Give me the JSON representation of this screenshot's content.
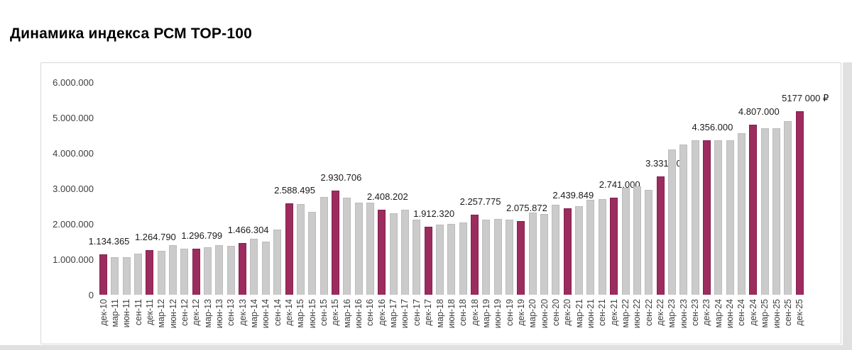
{
  "chart_data": {
    "type": "bar",
    "title": "Динамика индекса РСМ ТОР-100",
    "currency_unit": "₽",
    "ylim": [
      0,
      6000000
    ],
    "grid": false,
    "legend": false,
    "x_label_rotation": "vertical-bottom-to-top",
    "highlight_rule": "december-bars-highlighted-with-value-labels",
    "colors": {
      "bar": "#cbcbcb",
      "highlight": "#9c2c5e"
    },
    "y_ticks": [
      {
        "label": "6.000.000",
        "value": 6000000
      },
      {
        "label": "5.000.000",
        "value": 5000000
      },
      {
        "label": "4.000.000",
        "value": 4000000
      },
      {
        "label": "3.000.000",
        "value": 3000000
      },
      {
        "label": "2.000.000",
        "value": 2000000
      },
      {
        "label": "1.000.000",
        "value": 1000000
      },
      {
        "label": "0",
        "value": 0
      }
    ],
    "bars": [
      {
        "label": "дек-10",
        "value": 1134365,
        "highlight": true,
        "annotation": "1.134.365"
      },
      {
        "label": "мар-11",
        "value": 1060000
      },
      {
        "label": "июн-11",
        "value": 1060000
      },
      {
        "label": "сен-11",
        "value": 1160000
      },
      {
        "label": "дек-11",
        "value": 1264790,
        "highlight": true,
        "annotation": "1.264.790"
      },
      {
        "label": "мар-12",
        "value": 1250000
      },
      {
        "label": "июн-12",
        "value": 1400000
      },
      {
        "label": "сен-12",
        "value": 1310000
      },
      {
        "label": "дек-12",
        "value": 1296799,
        "highlight": true,
        "annotation": "1.296.799"
      },
      {
        "label": "мар-13",
        "value": 1340000
      },
      {
        "label": "июн-13",
        "value": 1410000
      },
      {
        "label": "сен-13",
        "value": 1380000
      },
      {
        "label": "дек-13",
        "value": 1466304,
        "highlight": true,
        "annotation": "1.466.304"
      },
      {
        "label": "мар-14",
        "value": 1590000
      },
      {
        "label": "июн-14",
        "value": 1510000
      },
      {
        "label": "сен-14",
        "value": 1840000
      },
      {
        "label": "дек-14",
        "value": 2588495,
        "highlight": true,
        "annotation": "2.588.495"
      },
      {
        "label": "мар-15",
        "value": 2570000
      },
      {
        "label": "июн-15",
        "value": 2350000
      },
      {
        "label": "сен-15",
        "value": 2770000
      },
      {
        "label": "дек-15",
        "value": 2930706,
        "highlight": true,
        "annotation": "2.930.706"
      },
      {
        "label": "мар-16",
        "value": 2750000
      },
      {
        "label": "июн-16",
        "value": 2610000
      },
      {
        "label": "сен-16",
        "value": 2610000
      },
      {
        "label": "дек-16",
        "value": 2408202,
        "highlight": true,
        "annotation": "2.408.202"
      },
      {
        "label": "мар-17",
        "value": 2300000
      },
      {
        "label": "июн-17",
        "value": 2400000
      },
      {
        "label": "сен-17",
        "value": 2130000
      },
      {
        "label": "дек-17",
        "value": 1912320,
        "highlight": true,
        "annotation": "1.912.320"
      },
      {
        "label": "мар-18",
        "value": 1980000
      },
      {
        "label": "июн-18",
        "value": 2010000
      },
      {
        "label": "сен-18",
        "value": 2040000
      },
      {
        "label": "дек-18",
        "value": 2257775,
        "highlight": true,
        "annotation": "2.257.775"
      },
      {
        "label": "мар-19",
        "value": 2130000
      },
      {
        "label": "июн-19",
        "value": 2140000
      },
      {
        "label": "сен-19",
        "value": 2120000
      },
      {
        "label": "дек-19",
        "value": 2075872,
        "highlight": true,
        "annotation": "2.075.872"
      },
      {
        "label": "мар-20",
        "value": 2330000
      },
      {
        "label": "июн-20",
        "value": 2290000
      },
      {
        "label": "сен-20",
        "value": 2550000
      },
      {
        "label": "дек-20",
        "value": 2439849,
        "highlight": true,
        "annotation": "2.439.849"
      },
      {
        "label": "мар-21",
        "value": 2510000
      },
      {
        "label": "июн-21",
        "value": 2690000
      },
      {
        "label": "сен-21",
        "value": 2700000
      },
      {
        "label": "дек-21",
        "value": 2741000,
        "highlight": true,
        "annotation": "2.741.000"
      },
      {
        "label": "мар-22",
        "value": 3020000
      },
      {
        "label": "июн-22",
        "value": 3070000
      },
      {
        "label": "сен-22",
        "value": 2970000
      },
      {
        "label": "дек-22",
        "value": 3331000,
        "highlight": true,
        "annotation": "3.331.000"
      },
      {
        "label": "мар-23",
        "value": 4100000
      },
      {
        "label": "июн-23",
        "value": 4240000
      },
      {
        "label": "сен-23",
        "value": 4360000
      },
      {
        "label": "дек-23",
        "value": 4356000,
        "highlight": true,
        "annotation": "4.356.000"
      },
      {
        "label": "мар-24",
        "value": 4360000
      },
      {
        "label": "июн-24",
        "value": 4360000
      },
      {
        "label": "сен-24",
        "value": 4570000
      },
      {
        "label": "дек-24",
        "value": 4807000,
        "highlight": true,
        "annotation": "4.807.000"
      },
      {
        "label": "мар-25",
        "value": 4700000
      },
      {
        "label": "июн-25",
        "value": 4700000
      },
      {
        "label": "сен-25",
        "value": 4910000
      },
      {
        "label": "дек-25",
        "value": 5177000,
        "highlight": true,
        "annotation": "5177 000 ₽"
      }
    ]
  }
}
